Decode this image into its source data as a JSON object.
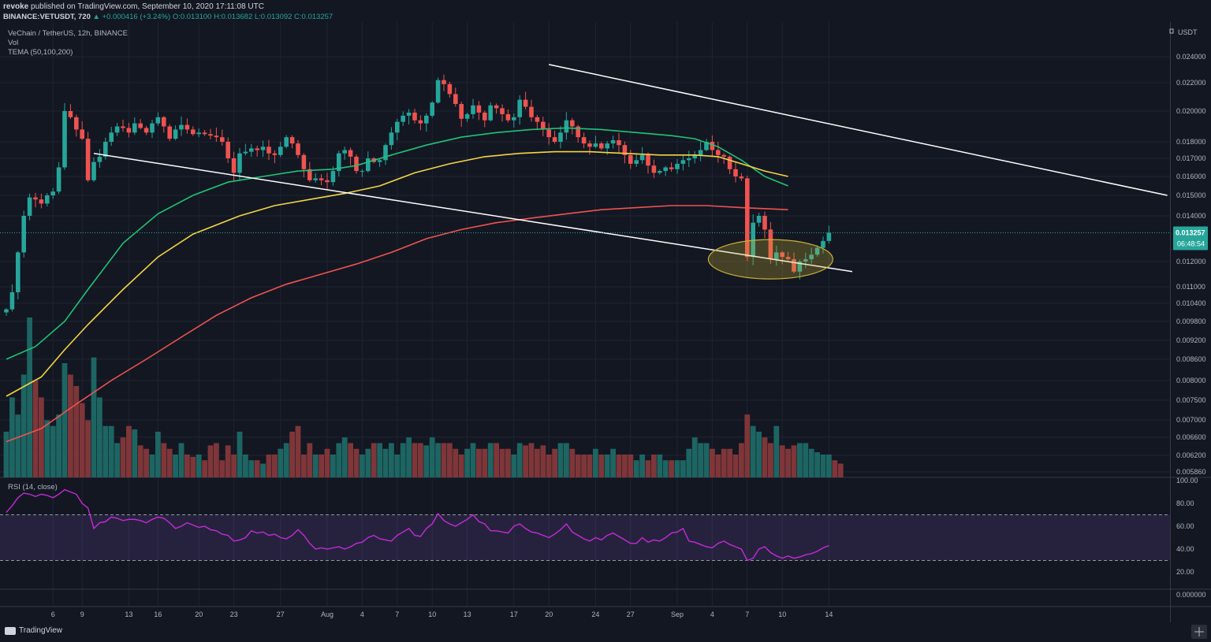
{
  "header": {
    "publisher": "revoke",
    "published_line": "published on TradingView.com, September 10, 2020 17:11:08 UTC",
    "symbol_line": "BINANCE:VETUSDT, 720",
    "change": "▲ +0.000416 (+3.24%)",
    "ohlc": "O:0.013100 H:0.013682 L:0.013092 C:0.013257"
  },
  "legend": {
    "title": "VeChain / TetherUS, 12h, BINANCE",
    "vol": "Vol",
    "tema": "TEMA (50,100,200)",
    "rsi": "RSI (14, close)"
  },
  "brand": {
    "name": "TradingView"
  },
  "colors": {
    "bg": "#131722",
    "up": "#26a69a",
    "down": "#ef5350",
    "tema50": "#20c377",
    "tema100": "#f5d547",
    "tema200": "#ef5350",
    "rsi": "#c32bd5",
    "trend": "#ffffff",
    "ellipse": "#c9b037",
    "grid": "#1f2433"
  },
  "chart_data": [
    {
      "type": "candlestick",
      "title": "VeChain / TetherUS, 12h, BINANCE",
      "ylabel": "USDT",
      "unit_label": "USDT",
      "y_ticks": [
        "0.024000",
        "0.022000",
        "0.020000",
        "0.018000",
        "0.017000",
        "0.016000",
        "0.015000",
        "0.014000",
        "0.012000",
        "0.011000",
        "0.010400",
        "0.009800",
        "0.009200",
        "0.008600",
        "0.008000",
        "0.007500",
        "0.007000",
        "0.006600",
        "0.006200",
        "0.005860"
      ],
      "x_ticks": [
        {
          "label": "6",
          "i": 8
        },
        {
          "label": "9",
          "i": 13
        },
        {
          "label": "13",
          "i": 21
        },
        {
          "label": "16",
          "i": 26
        },
        {
          "label": "20",
          "i": 33
        },
        {
          "label": "23",
          "i": 39
        },
        {
          "label": "27",
          "i": 47
        },
        {
          "label": "Aug",
          "i": 55
        },
        {
          "label": "4",
          "i": 61
        },
        {
          "label": "7",
          "i": 67
        },
        {
          "label": "10",
          "i": 73
        },
        {
          "label": "13",
          "i": 79
        },
        {
          "label": "17",
          "i": 87
        },
        {
          "label": "20",
          "i": 93
        },
        {
          "label": "24",
          "i": 101
        },
        {
          "label": "27",
          "i": 107
        },
        {
          "label": "Sep",
          "i": 115
        },
        {
          "label": "4",
          "i": 121
        },
        {
          "label": "7",
          "i": 127
        },
        {
          "label": "10",
          "i": 133
        },
        {
          "label": "14",
          "i": 141
        }
      ],
      "last_price": "0.013257",
      "countdown": "06:48:54",
      "closes": [
        0.0102,
        0.0108,
        0.0124,
        0.014,
        0.0149,
        0.0148,
        0.0146,
        0.015,
        0.0152,
        0.0165,
        0.02,
        0.0196,
        0.0188,
        0.0182,
        0.0158,
        0.0168,
        0.0171,
        0.018,
        0.0186,
        0.019,
        0.0189,
        0.0186,
        0.0192,
        0.0189,
        0.0186,
        0.0192,
        0.0196,
        0.019,
        0.0182,
        0.0188,
        0.0191,
        0.0188,
        0.0185,
        0.0186,
        0.0185,
        0.0184,
        0.0183,
        0.018,
        0.017,
        0.0162,
        0.0173,
        0.0174,
        0.0176,
        0.0175,
        0.0177,
        0.0173,
        0.0172,
        0.0177,
        0.0183,
        0.0179,
        0.0172,
        0.0164,
        0.0158,
        0.0159,
        0.0158,
        0.0157,
        0.0163,
        0.0173,
        0.0175,
        0.0171,
        0.0163,
        0.0163,
        0.017,
        0.0168,
        0.0169,
        0.0178,
        0.0186,
        0.0193,
        0.0197,
        0.0199,
        0.0194,
        0.0192,
        0.0197,
        0.0206,
        0.0222,
        0.0219,
        0.0212,
        0.0205,
        0.0195,
        0.0198,
        0.0204,
        0.0199,
        0.0194,
        0.0204,
        0.0202,
        0.0198,
        0.0194,
        0.0196,
        0.0208,
        0.0203,
        0.0196,
        0.0193,
        0.0188,
        0.0183,
        0.018,
        0.0186,
        0.0194,
        0.019,
        0.0183,
        0.0179,
        0.0177,
        0.0179,
        0.0176,
        0.0179,
        0.0181,
        0.0178,
        0.0172,
        0.0167,
        0.0169,
        0.0172,
        0.0166,
        0.0162,
        0.0163,
        0.0165,
        0.0164,
        0.0167,
        0.0169,
        0.017,
        0.0172,
        0.0175,
        0.018,
        0.0175,
        0.0172,
        0.0171,
        0.0164,
        0.016,
        0.0159,
        0.0122,
        0.0137,
        0.014,
        0.0134,
        0.0121,
        0.0124,
        0.0122,
        0.0121,
        0.0116,
        0.012,
        0.0121,
        0.0123,
        0.0126,
        0.0129,
        0.01326
      ],
      "series_tema": [
        {
          "name": "TEMA 50",
          "color": "#20c377",
          "points": [
            [
              0,
              0.0086
            ],
            [
              5,
              0.009
            ],
            [
              10,
              0.0098
            ],
            [
              14,
              0.0109
            ],
            [
              20,
              0.0128
            ],
            [
              26,
              0.0141
            ],
            [
              32,
              0.015
            ],
            [
              38,
              0.0157
            ],
            [
              44,
              0.016
            ],
            [
              50,
              0.0163
            ],
            [
              56,
              0.0164
            ],
            [
              60,
              0.0166
            ],
            [
              66,
              0.0172
            ],
            [
              72,
              0.0178
            ],
            [
              78,
              0.0183
            ],
            [
              84,
              0.0186
            ],
            [
              90,
              0.0188
            ],
            [
              96,
              0.0189
            ],
            [
              102,
              0.0188
            ],
            [
              108,
              0.0186
            ],
            [
              114,
              0.0184
            ],
            [
              118,
              0.0182
            ],
            [
              122,
              0.0177
            ],
            [
              126,
              0.0169
            ],
            [
              130,
              0.016
            ],
            [
              134,
              0.0155
            ]
          ]
        },
        {
          "name": "TEMA 100",
          "color": "#f5d547",
          "points": [
            [
              0,
              0.0076
            ],
            [
              6,
              0.0081
            ],
            [
              10,
              0.0089
            ],
            [
              14,
              0.0097
            ],
            [
              20,
              0.0109
            ],
            [
              26,
              0.0122
            ],
            [
              32,
              0.0132
            ],
            [
              40,
              0.014
            ],
            [
              46,
              0.0145
            ],
            [
              52,
              0.0148
            ],
            [
              58,
              0.0151
            ],
            [
              64,
              0.0155
            ],
            [
              70,
              0.0162
            ],
            [
              76,
              0.0167
            ],
            [
              82,
              0.0171
            ],
            [
              88,
              0.0173
            ],
            [
              94,
              0.0174
            ],
            [
              100,
              0.0174
            ],
            [
              106,
              0.0173
            ],
            [
              112,
              0.0172
            ],
            [
              118,
              0.0172
            ],
            [
              122,
              0.0171
            ],
            [
              126,
              0.0167
            ],
            [
              130,
              0.0163
            ],
            [
              134,
              0.016
            ]
          ]
        },
        {
          "name": "TEMA 200",
          "color": "#ef5350",
          "points": [
            [
              0,
              0.0065
            ],
            [
              6,
              0.0068
            ],
            [
              12,
              0.0074
            ],
            [
              18,
              0.008
            ],
            [
              24,
              0.0086
            ],
            [
              30,
              0.0093
            ],
            [
              36,
              0.01
            ],
            [
              42,
              0.0106
            ],
            [
              48,
              0.0111
            ],
            [
              54,
              0.0115
            ],
            [
              60,
              0.0119
            ],
            [
              66,
              0.0124
            ],
            [
              72,
              0.013
            ],
            [
              78,
              0.0134
            ],
            [
              84,
              0.0137
            ],
            [
              90,
              0.0139
            ],
            [
              96,
              0.0141
            ],
            [
              102,
              0.0143
            ],
            [
              108,
              0.0144
            ],
            [
              114,
              0.0145
            ],
            [
              120,
              0.0145
            ],
            [
              126,
              0.0144
            ],
            [
              134,
              0.0143
            ]
          ]
        }
      ]
    },
    {
      "type": "bar",
      "title": "Vol",
      "values": [
        0.4,
        0.7,
        0.55,
        0.9,
        1.4,
        0.85,
        0.7,
        0.5,
        0.45,
        0.55,
        1.0,
        0.9,
        0.8,
        0.65,
        0.5,
        1.05,
        0.7,
        0.45,
        0.45,
        0.3,
        0.35,
        0.45,
        0.42,
        0.28,
        0.25,
        0.2,
        0.4,
        0.3,
        0.25,
        0.2,
        0.3,
        0.2,
        0.18,
        0.2,
        0.15,
        0.28,
        0.3,
        0.15,
        0.28,
        0.2,
        0.4,
        0.2,
        0.15,
        0.15,
        0.12,
        0.2,
        0.2,
        0.25,
        0.3,
        0.4,
        0.45,
        0.2,
        0.3,
        0.2,
        0.2,
        0.25,
        0.2,
        0.3,
        0.35,
        0.3,
        0.25,
        0.2,
        0.25,
        0.3,
        0.3,
        0.25,
        0.3,
        0.2,
        0.3,
        0.35,
        0.3,
        0.3,
        0.28,
        0.35,
        0.3,
        0.3,
        0.3,
        0.25,
        0.2,
        0.25,
        0.3,
        0.25,
        0.25,
        0.3,
        0.3,
        0.25,
        0.25,
        0.2,
        0.3,
        0.28,
        0.3,
        0.25,
        0.28,
        0.2,
        0.25,
        0.3,
        0.3,
        0.25,
        0.2,
        0.2,
        0.2,
        0.25,
        0.2,
        0.2,
        0.25,
        0.2,
        0.2,
        0.2,
        0.15,
        0.2,
        0.15,
        0.2,
        0.2,
        0.15,
        0.15,
        0.15,
        0.15,
        0.25,
        0.35,
        0.3,
        0.3,
        0.25,
        0.2,
        0.25,
        0.25,
        0.2,
        0.3,
        0.55,
        0.45,
        0.4,
        0.35,
        0.3,
        0.45,
        0.28,
        0.25,
        0.28,
        0.3,
        0.3,
        0.25,
        0.22,
        0.2,
        0.2,
        0.15,
        0.12
      ]
    },
    {
      "type": "line",
      "title": "RSI (14, close)",
      "ylim": [
        0,
        100
      ],
      "y_ticks": [
        "100.00",
        "80.00",
        "60.00",
        "40.00",
        "20.00",
        "0.000000"
      ],
      "band": [
        30,
        70
      ],
      "values": [
        72,
        78,
        85,
        89,
        88,
        86,
        88,
        87,
        85,
        88,
        92,
        90,
        88,
        80,
        76,
        58,
        63,
        64,
        68,
        67,
        65,
        66,
        66,
        65,
        63,
        66,
        68,
        67,
        63,
        58,
        60,
        63,
        61,
        59,
        60,
        57,
        56,
        53,
        52,
        47,
        48,
        50,
        56,
        54,
        55,
        52,
        53,
        50,
        49,
        52,
        57,
        52,
        45,
        40,
        41,
        40,
        41,
        42,
        40,
        42,
        45,
        46,
        50,
        52,
        49,
        48,
        47,
        52,
        55,
        58,
        52,
        51,
        58,
        62,
        71,
        65,
        62,
        60,
        63,
        66,
        70,
        64,
        62,
        56,
        56,
        55,
        54,
        60,
        62,
        58,
        55,
        54,
        52,
        50,
        53,
        57,
        62,
        55,
        52,
        49,
        47,
        50,
        48,
        52,
        54,
        51,
        48,
        45,
        45,
        50,
        46,
        48,
        47,
        50,
        54,
        55,
        58,
        47,
        46,
        44,
        42,
        41,
        45,
        47,
        44,
        42,
        40,
        30,
        32,
        40,
        42,
        37,
        34,
        32,
        34,
        32,
        33,
        35,
        36,
        38,
        41,
        43
      ]
    }
  ]
}
